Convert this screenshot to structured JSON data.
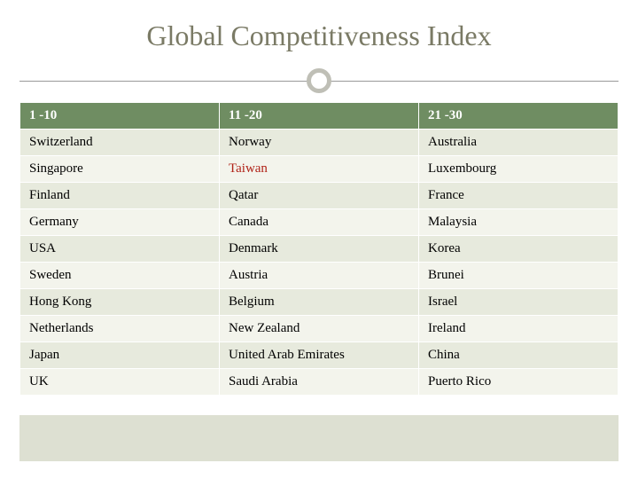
{
  "title": "Global Competitiveness Index",
  "table": {
    "columns": [
      "1 -10",
      "11 -20",
      "21 -30"
    ],
    "rows": [
      [
        "Switzerland",
        "Norway",
        "Australia"
      ],
      [
        "Singapore",
        "Taiwan",
        "Luxembourg"
      ],
      [
        "Finland",
        "Qatar",
        "France"
      ],
      [
        "Germany",
        "Canada",
        "Malaysia"
      ],
      [
        "USA",
        "Denmark",
        "Korea"
      ],
      [
        "Sweden",
        "Austria",
        "Brunei"
      ],
      [
        "Hong Kong",
        "Belgium",
        "Israel"
      ],
      [
        "Netherlands",
        "New Zealand",
        "Ireland"
      ],
      [
        "Japan",
        "United Arab Emirates",
        "China"
      ],
      [
        "UK",
        "Saudi Arabia",
        "Puerto Rico"
      ]
    ],
    "highlight": {
      "row": 1,
      "col": 1
    },
    "header_bg": "#6f8d62",
    "header_fg": "#ffffff",
    "row_odd_bg": "#e7eadd",
    "row_even_bg": "#f3f4ec",
    "highlight_color": "#b02318",
    "fontsize": 15
  },
  "colors": {
    "title_color": "#7a7a65",
    "ring_color": "#bfbfb6",
    "footer_band": "#dde0d2",
    "background": "#ffffff"
  }
}
